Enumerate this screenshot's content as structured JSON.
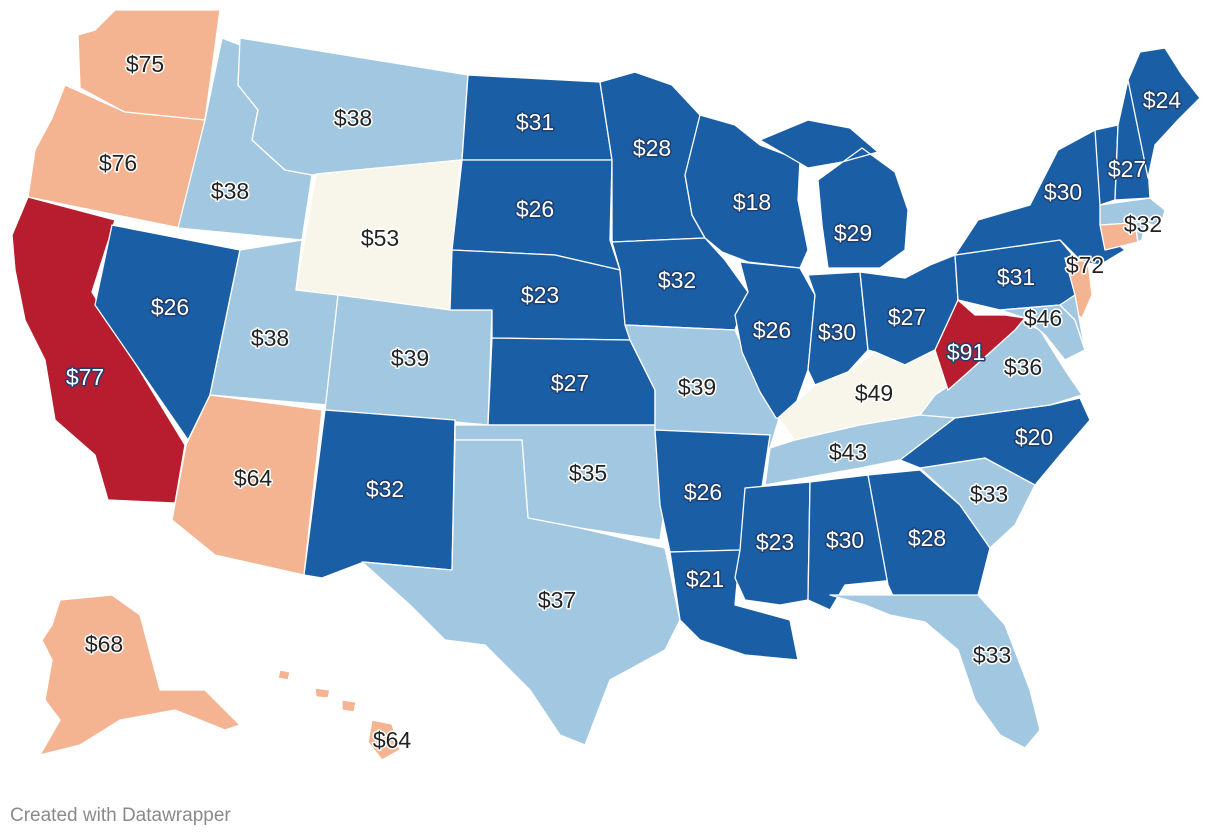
{
  "colors": {
    "dark_blue": "#1a5fa6",
    "light_blue": "#a2c8e1",
    "cream": "#f8f6ea",
    "salmon": "#f4b391",
    "red": "#b71d2e"
  },
  "credit": "Created with Datawrapper",
  "states": [
    {
      "id": "WA",
      "value": "$75",
      "cls": "salmon"
    },
    {
      "id": "OR",
      "value": "$76",
      "cls": "salmon"
    },
    {
      "id": "CA",
      "value": "$77",
      "cls": "red"
    },
    {
      "id": "ID",
      "value": "$38",
      "cls": "light_blue"
    },
    {
      "id": "NV",
      "value": "$26",
      "cls": "dark_blue"
    },
    {
      "id": "MT",
      "value": "$38",
      "cls": "light_blue"
    },
    {
      "id": "WY",
      "value": "$53",
      "cls": "cream"
    },
    {
      "id": "UT",
      "value": "$38",
      "cls": "light_blue"
    },
    {
      "id": "AZ",
      "value": "$64",
      "cls": "salmon"
    },
    {
      "id": "CO",
      "value": "$39",
      "cls": "light_blue"
    },
    {
      "id": "NM",
      "value": "$32",
      "cls": "dark_blue"
    },
    {
      "id": "ND",
      "value": "$31",
      "cls": "dark_blue"
    },
    {
      "id": "SD",
      "value": "$26",
      "cls": "dark_blue"
    },
    {
      "id": "NE",
      "value": "$23",
      "cls": "dark_blue"
    },
    {
      "id": "KS",
      "value": "$27",
      "cls": "dark_blue"
    },
    {
      "id": "OK",
      "value": "$35",
      "cls": "light_blue"
    },
    {
      "id": "TX",
      "value": "$37",
      "cls": "light_blue"
    },
    {
      "id": "MN",
      "value": "$28",
      "cls": "dark_blue"
    },
    {
      "id": "IA",
      "value": "$32",
      "cls": "dark_blue"
    },
    {
      "id": "MO",
      "value": "$39",
      "cls": "light_blue"
    },
    {
      "id": "AR",
      "value": "$26",
      "cls": "dark_blue"
    },
    {
      "id": "LA",
      "value": "$21",
      "cls": "dark_blue"
    },
    {
      "id": "WI",
      "value": "$18",
      "cls": "dark_blue"
    },
    {
      "id": "IL",
      "value": "$26",
      "cls": "dark_blue"
    },
    {
      "id": "MI",
      "value": "$29",
      "cls": "dark_blue"
    },
    {
      "id": "IN",
      "value": "$30",
      "cls": "dark_blue"
    },
    {
      "id": "OH",
      "value": "$27",
      "cls": "dark_blue"
    },
    {
      "id": "KY",
      "value": "$49",
      "cls": "cream"
    },
    {
      "id": "TN",
      "value": "$43",
      "cls": "light_blue"
    },
    {
      "id": "MS",
      "value": "$23",
      "cls": "dark_blue"
    },
    {
      "id": "AL",
      "value": "$30",
      "cls": "dark_blue"
    },
    {
      "id": "GA",
      "value": "$28",
      "cls": "dark_blue"
    },
    {
      "id": "FL",
      "value": "$33",
      "cls": "light_blue"
    },
    {
      "id": "SC",
      "value": "$33",
      "cls": "light_blue"
    },
    {
      "id": "NC",
      "value": "$20",
      "cls": "dark_blue"
    },
    {
      "id": "VA",
      "value": "$36",
      "cls": "light_blue"
    },
    {
      "id": "WV",
      "value": "$91",
      "cls": "red"
    },
    {
      "id": "PA",
      "value": "$31",
      "cls": "dark_blue"
    },
    {
      "id": "NY",
      "value": "$30",
      "cls": "dark_blue"
    },
    {
      "id": "NJ",
      "value": "$72",
      "cls": "salmon"
    },
    {
      "id": "MD",
      "value": "$46",
      "cls": "light_blue"
    },
    {
      "id": "DE",
      "value": "",
      "cls": "light_blue"
    },
    {
      "id": "CT",
      "value": "",
      "cls": "salmon"
    },
    {
      "id": "RI",
      "value": "",
      "cls": "light_blue"
    },
    {
      "id": "MA",
      "value": "$32",
      "cls": "light_blue"
    },
    {
      "id": "VT",
      "value": "",
      "cls": "dark_blue"
    },
    {
      "id": "NH",
      "value": "$27",
      "cls": "dark_blue"
    },
    {
      "id": "ME",
      "value": "$24",
      "cls": "dark_blue"
    },
    {
      "id": "AK",
      "value": "$68",
      "cls": "salmon"
    },
    {
      "id": "HI",
      "value": "$64",
      "cls": "salmon"
    }
  ]
}
